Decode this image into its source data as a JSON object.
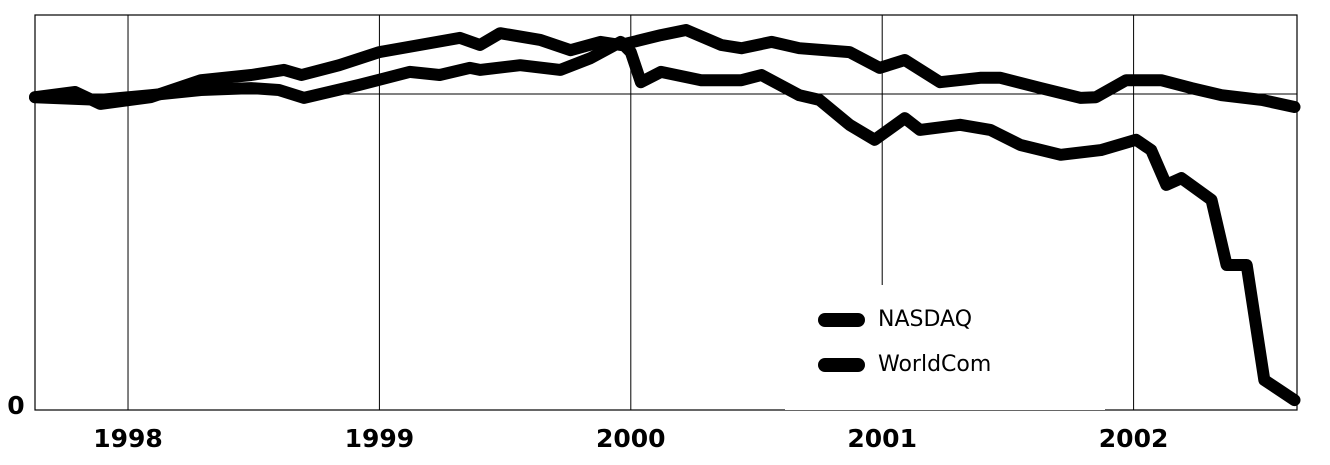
{
  "chart_data": {
    "type": "line",
    "xlim": [
      1997.63,
      2002.65
    ],
    "ylim": [
      0,
      100
    ],
    "xticks": [
      1998,
      1999,
      2000,
      2001,
      2002
    ],
    "yticks": [
      0
    ],
    "ygrid": [
      80
    ],
    "grid": true,
    "legend": "lower right",
    "series": [
      {
        "name": "NASDAQ",
        "color": "#000000",
        "x": [
          1997.63,
          1997.79,
          1997.89,
          1998.09,
          1998.29,
          1998.49,
          1998.62,
          1998.69,
          1998.84,
          1999.0,
          1999.16,
          1999.32,
          1999.4,
          1999.48,
          1999.64,
          1999.76,
          1999.88,
          1999.96,
          2000.12,
          2000.22,
          2000.36,
          2000.44,
          2000.56,
          2000.67,
          2000.87,
          2000.99,
          2001.09,
          2001.23,
          2001.39,
          2001.47,
          2001.63,
          2001.79,
          2001.85,
          2001.97,
          2002.11,
          2002.23,
          2002.35,
          2002.51,
          2002.64
        ],
        "values": [
          79.2,
          80.5,
          77.5,
          79.2,
          83.5,
          84.8,
          86.1,
          84.8,
          87.3,
          90.6,
          92.4,
          94.2,
          92.4,
          95.4,
          93.7,
          91.1,
          93.2,
          92.4,
          94.9,
          96.2,
          92.4,
          91.6,
          93.2,
          91.6,
          90.6,
          86.6,
          88.6,
          83.0,
          84.1,
          84.1,
          81.5,
          79.0,
          79.2,
          83.5,
          83.5,
          81.5,
          79.7,
          78.5,
          76.7
        ]
      },
      {
        "name": "WorldCom",
        "color": "#000000",
        "x": [
          1997.63,
          1997.89,
          1998.09,
          1998.29,
          1998.49,
          1998.6,
          1998.7,
          1998.92,
          1999.12,
          1999.24,
          1999.36,
          1999.4,
          1999.56,
          1999.72,
          1999.84,
          1999.96,
          2000.0,
          2000.04,
          2000.12,
          2000.28,
          2000.44,
          2000.52,
          2000.67,
          2000.75,
          2000.87,
          2000.97,
          2001.09,
          2001.15,
          2001.31,
          2001.43,
          2001.55,
          2001.71,
          2001.87,
          2002.01,
          2002.07,
          2002.13,
          2002.19,
          2002.31,
          2002.37,
          2002.45,
          2002.52,
          2002.64
        ],
        "values": [
          79.2,
          78.5,
          79.7,
          81.0,
          81.5,
          81.0,
          79.0,
          82.3,
          85.6,
          84.8,
          86.6,
          86.1,
          87.3,
          86.1,
          89.1,
          93.2,
          90.6,
          83.0,
          85.6,
          83.5,
          83.5,
          84.8,
          79.7,
          78.5,
          72.2,
          68.4,
          73.9,
          70.9,
          72.2,
          70.9,
          67.1,
          64.6,
          65.8,
          68.4,
          65.8,
          57.0,
          58.7,
          53.2,
          36.7,
          36.7,
          7.6,
          2.5
        ]
      }
    ]
  }
}
